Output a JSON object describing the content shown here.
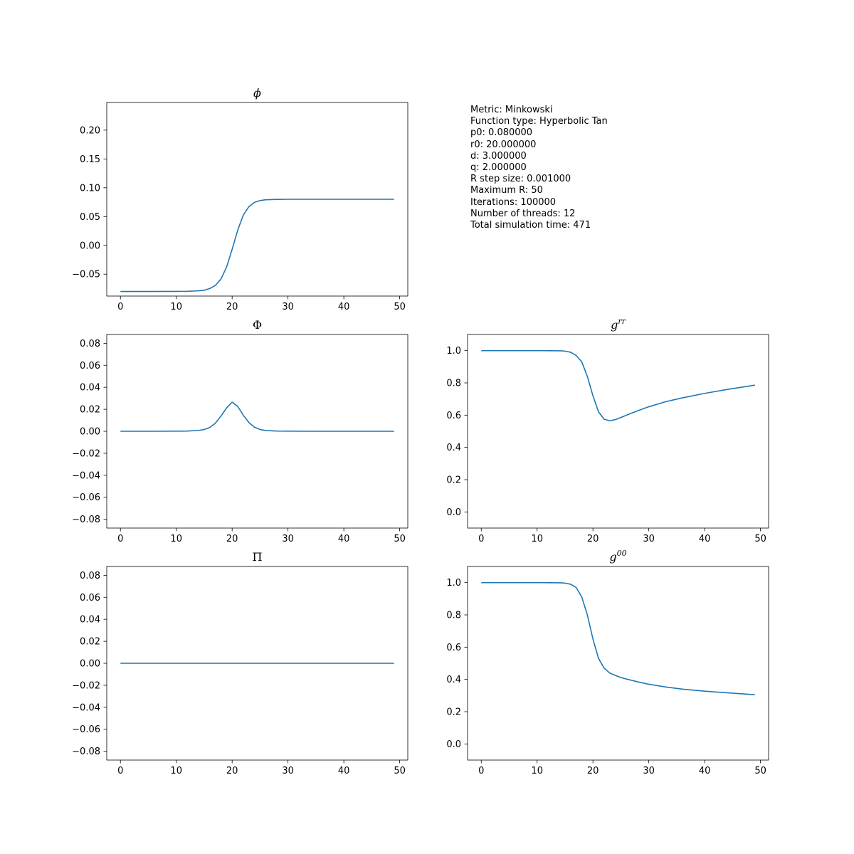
{
  "info_lines": [
    "Metric: Minkowski",
    "Function type: Hyperbolic Tan",
    "p0: 0.080000",
    "r0: 20.000000",
    "d: 3.000000",
    "q: 2.000000",
    "R step size: 0.001000",
    "Maximum R: 50",
    "Iterations: 100000",
    "Number of threads: 12",
    "Total simulation time: 471"
  ],
  "colors": {
    "line": "#1f77b4",
    "axes": "#000000",
    "background": "#ffffff"
  },
  "chart_data": [
    {
      "id": "phi",
      "type": "line",
      "title": "ϕ",
      "title_italic": true,
      "xlim": [
        -2.45,
        51.45
      ],
      "ylim": [
        -0.088,
        0.248
      ],
      "xticks": [
        0,
        10,
        20,
        30,
        40,
        50
      ],
      "yticks": [
        -0.05,
        0.0,
        0.05,
        0.1,
        0.15,
        0.2
      ],
      "ytick_labels": [
        "−0.05",
        "0.00",
        "0.05",
        "0.10",
        "0.15",
        "0.20"
      ],
      "grid": false,
      "series": [
        {
          "x": [
            0,
            5,
            10,
            12,
            14,
            15,
            16,
            17,
            18,
            19,
            20,
            21,
            22,
            23,
            24,
            25,
            26,
            28,
            30,
            35,
            40,
            45,
            49
          ],
          "values": [
            -0.08,
            -0.08,
            -0.0799,
            -0.0797,
            -0.0789,
            -0.0779,
            -0.0749,
            -0.0695,
            -0.0584,
            -0.0379,
            -0.0069,
            0.0265,
            0.0525,
            0.0672,
            0.0746,
            0.0778,
            0.0791,
            0.0798,
            0.08,
            0.08,
            0.08,
            0.08,
            0.08
          ]
        }
      ]
    },
    {
      "id": "Phi",
      "type": "line",
      "title": "Φ",
      "title_italic": false,
      "xlim": [
        -2.45,
        51.45
      ],
      "ylim": [
        -0.088,
        0.088
      ],
      "xticks": [
        0,
        10,
        20,
        30,
        40,
        50
      ],
      "yticks": [
        -0.08,
        -0.06,
        -0.04,
        -0.02,
        0.0,
        0.02,
        0.04,
        0.06,
        0.08
      ],
      "ytick_labels": [
        "−0.08",
        "−0.06",
        "−0.04",
        "−0.02",
        "0.00",
        "0.02",
        "0.04",
        "0.06",
        "0.08"
      ],
      "grid": false,
      "series": [
        {
          "x": [
            0,
            5,
            10,
            12,
            14,
            15,
            16,
            17,
            18,
            19,
            20,
            21,
            22,
            23,
            24,
            25,
            26,
            28,
            30,
            35,
            40,
            45,
            49
          ],
          "values": [
            0,
            0,
            0.0001,
            0.0002,
            0.0008,
            0.0016,
            0.0035,
            0.0074,
            0.0138,
            0.0212,
            0.0265,
            0.0226,
            0.0146,
            0.0079,
            0.0037,
            0.0016,
            0.0007,
            0.0002,
            0.0001,
            0,
            0,
            0,
            0
          ]
        }
      ]
    },
    {
      "id": "grr",
      "type": "line",
      "title": "g^rr",
      "title_base": "g",
      "title_sup": "rr",
      "title_italic": true,
      "xlim": [
        -2.45,
        51.45
      ],
      "ylim": [
        -0.1,
        1.1
      ],
      "xticks": [
        0,
        10,
        20,
        30,
        40,
        50
      ],
      "yticks": [
        0.0,
        0.2,
        0.4,
        0.6,
        0.8,
        1.0
      ],
      "ytick_labels": [
        "0.0",
        "0.2",
        "0.4",
        "0.6",
        "0.8",
        "1.0"
      ],
      "grid": false,
      "series": [
        {
          "x": [
            0,
            5,
            10,
            14,
            15,
            16,
            17,
            18,
            19,
            20,
            21,
            22,
            23,
            24,
            25,
            26,
            28,
            30,
            33,
            36,
            40,
            44,
            49
          ],
          "values": [
            1.0,
            1.0,
            1.0,
            0.999,
            0.997,
            0.99,
            0.97,
            0.93,
            0.84,
            0.72,
            0.62,
            0.575,
            0.565,
            0.572,
            0.585,
            0.6,
            0.627,
            0.652,
            0.683,
            0.707,
            0.735,
            0.759,
            0.786
          ]
        }
      ]
    },
    {
      "id": "Pi",
      "type": "line",
      "title": "Π",
      "title_italic": false,
      "xlim": [
        -2.45,
        51.45
      ],
      "ylim": [
        -0.088,
        0.088
      ],
      "xticks": [
        0,
        10,
        20,
        30,
        40,
        50
      ],
      "yticks": [
        -0.08,
        -0.06,
        -0.04,
        -0.02,
        0.0,
        0.02,
        0.04,
        0.06,
        0.08
      ],
      "ytick_labels": [
        "−0.08",
        "−0.06",
        "−0.04",
        "−0.02",
        "0.00",
        "0.02",
        "0.04",
        "0.06",
        "0.08"
      ],
      "grid": false,
      "series": [
        {
          "x": [
            0,
            10,
            20,
            30,
            40,
            49
          ],
          "values": [
            0,
            0,
            0,
            0,
            0,
            0
          ]
        }
      ]
    },
    {
      "id": "g00",
      "type": "line",
      "title": "g^00",
      "title_base": "g",
      "title_sup": "00",
      "title_italic": true,
      "xlim": [
        -2.45,
        51.45
      ],
      "ylim": [
        -0.1,
        1.1
      ],
      "xticks": [
        0,
        10,
        20,
        30,
        40,
        50
      ],
      "yticks": [
        0.0,
        0.2,
        0.4,
        0.6,
        0.8,
        1.0
      ],
      "ytick_labels": [
        "0.0",
        "0.2",
        "0.4",
        "0.6",
        "0.8",
        "1.0"
      ],
      "grid": false,
      "series": [
        {
          "x": [
            0,
            5,
            10,
            14,
            15,
            16,
            17,
            18,
            19,
            20,
            21,
            22,
            23,
            24,
            25,
            26,
            28,
            30,
            33,
            36,
            40,
            44,
            49
          ],
          "values": [
            1.0,
            1.0,
            1.0,
            0.999,
            0.997,
            0.99,
            0.97,
            0.91,
            0.8,
            0.65,
            0.53,
            0.47,
            0.44,
            0.425,
            0.412,
            0.402,
            0.385,
            0.37,
            0.353,
            0.34,
            0.327,
            0.317,
            0.305
          ]
        }
      ]
    }
  ]
}
